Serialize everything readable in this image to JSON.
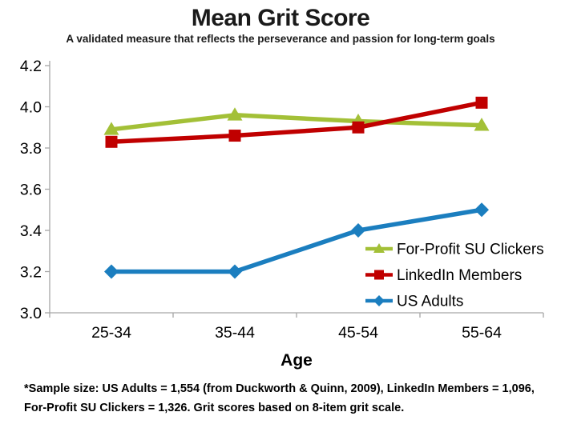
{
  "title": "Mean Grit Score",
  "subtitle": "A validated measure that reflects the perseverance and passion for long-term goals",
  "footnote": {
    "line1": "*Sample size: US Adults = 1,554 (from Duckworth & Quinn, 2009), LinkedIn Members = 1,096,",
    "line2": "For-Profit SU Clickers = 1,326. Grit scores based on 8-item grit scale."
  },
  "chart_data": {
    "type": "line",
    "title": "Mean Grit Score",
    "subtitle": "A validated measure that reflects the perseverance and passion for long-term goals",
    "categories": [
      "25-34",
      "35-44",
      "45-54",
      "55-64"
    ],
    "series": [
      {
        "name": "For-Profit SU Clickers",
        "marker": "triangle",
        "color": "#A3C037",
        "values": [
          3.89,
          3.96,
          3.93,
          3.91
        ]
      },
      {
        "name": "LinkedIn Members",
        "marker": "square",
        "color": "#C00000",
        "values": [
          3.83,
          3.86,
          3.9,
          4.02
        ]
      },
      {
        "name": "US Adults",
        "marker": "diamond",
        "color": "#1B7EBF",
        "values": [
          3.2,
          3.2,
          3.4,
          3.5
        ]
      }
    ],
    "xlabel": "Age",
    "ylabel": "",
    "ylim": [
      3.0,
      4.2
    ],
    "ytick_step": 0.2,
    "ytick_labels": [
      "3.0",
      "3.2",
      "3.4",
      "3.6",
      "3.8",
      "4.0",
      "4.2"
    ],
    "grid": false,
    "legend_position": "inside-bottom-right",
    "axis_color": "#A6A6A6",
    "text_color": "#000000"
  }
}
